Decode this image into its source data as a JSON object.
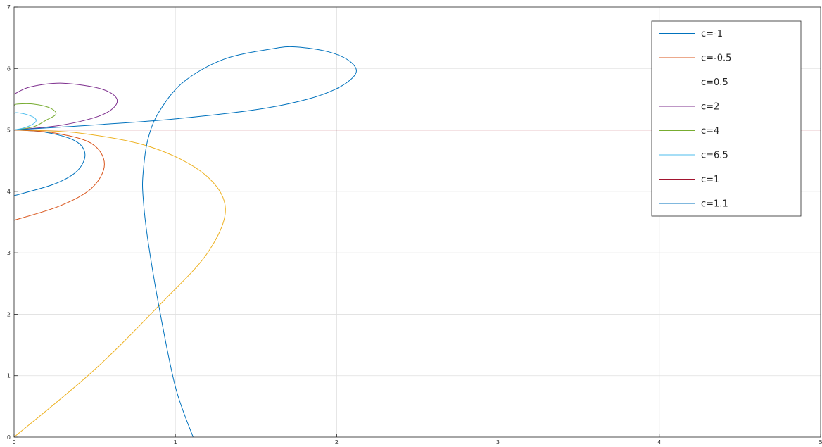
{
  "chart_data": {
    "type": "line",
    "title": "",
    "xlabel": "",
    "ylabel": "",
    "xlim": [
      0,
      5
    ],
    "ylim": [
      0,
      7
    ],
    "xticks": [
      "0",
      "1",
      "2",
      "3",
      "4",
      "5"
    ],
    "yticks": [
      "0",
      "1",
      "2",
      "3",
      "4",
      "5",
      "6",
      "7"
    ],
    "grid": true,
    "legend_position": "top-right",
    "series": [
      {
        "name": "c=-1",
        "color": "#0072bd",
        "points": [
          [
            0.0,
            5.0
          ],
          [
            0.2,
            4.96
          ],
          [
            0.38,
            4.82
          ],
          [
            0.44,
            4.6
          ],
          [
            0.39,
            4.33
          ],
          [
            0.25,
            4.12
          ],
          [
            0.0,
            3.93
          ]
        ]
      },
      {
        "name": "c=-0.5",
        "color": "#d95319",
        "points": [
          [
            0.0,
            5.0
          ],
          [
            0.25,
            4.95
          ],
          [
            0.48,
            4.78
          ],
          [
            0.56,
            4.44
          ],
          [
            0.48,
            4.05
          ],
          [
            0.28,
            3.76
          ],
          [
            0.0,
            3.53
          ]
        ]
      },
      {
        "name": "c=0.5",
        "color": "#edb120",
        "points": [
          [
            0.0,
            5.0
          ],
          [
            0.4,
            4.95
          ],
          [
            0.85,
            4.72
          ],
          [
            1.18,
            4.28
          ],
          [
            1.31,
            3.72
          ],
          [
            1.2,
            3.0
          ],
          [
            0.92,
            2.2
          ],
          [
            0.5,
            1.1
          ],
          [
            0.0,
            0.0
          ]
        ]
      },
      {
        "name": "c=2",
        "color": "#7e2f8e",
        "points": [
          [
            0.0,
            5.0
          ],
          [
            0.3,
            5.08
          ],
          [
            0.55,
            5.25
          ],
          [
            0.64,
            5.47
          ],
          [
            0.55,
            5.66
          ],
          [
            0.3,
            5.76
          ],
          [
            0.1,
            5.7
          ],
          [
            0.0,
            5.58
          ]
        ]
      },
      {
        "name": "c=4",
        "color": "#77ac30",
        "points": [
          [
            0.0,
            5.0
          ],
          [
            0.12,
            5.05
          ],
          [
            0.2,
            5.16
          ],
          [
            0.26,
            5.26
          ],
          [
            0.22,
            5.36
          ],
          [
            0.12,
            5.42
          ],
          [
            0.02,
            5.42
          ],
          [
            0.0,
            5.4
          ]
        ]
      },
      {
        "name": "c=6.5",
        "color": "#4dbeee",
        "points": [
          [
            0.0,
            5.0
          ],
          [
            0.07,
            5.04
          ],
          [
            0.13,
            5.12
          ],
          [
            0.13,
            5.19
          ],
          [
            0.08,
            5.25
          ],
          [
            0.02,
            5.28
          ],
          [
            0.0,
            5.27
          ]
        ]
      },
      {
        "name": "c=1",
        "color": "#a2142f",
        "points": [
          [
            0.0,
            5.0
          ],
          [
            5.0,
            5.0
          ]
        ]
      },
      {
        "name": "c=1.1",
        "color": "#0072bd",
        "points": [
          [
            1.11,
            0.0
          ],
          [
            1.0,
            0.82
          ],
          [
            0.9,
            2.1
          ],
          [
            0.83,
            3.2
          ],
          [
            0.8,
            3.9
          ],
          [
            0.8,
            4.3
          ],
          [
            0.83,
            4.85
          ],
          [
            0.9,
            5.3
          ],
          [
            1.05,
            5.78
          ],
          [
            1.3,
            6.15
          ],
          [
            1.6,
            6.32
          ],
          [
            1.75,
            6.35
          ],
          [
            1.95,
            6.27
          ],
          [
            2.08,
            6.12
          ],
          [
            2.12,
            5.93
          ],
          [
            2.02,
            5.7
          ],
          [
            1.82,
            5.5
          ],
          [
            1.5,
            5.33
          ],
          [
            1.0,
            5.18
          ],
          [
            0.55,
            5.09
          ],
          [
            0.25,
            5.04
          ],
          [
            0.0,
            5.0
          ]
        ]
      }
    ]
  }
}
